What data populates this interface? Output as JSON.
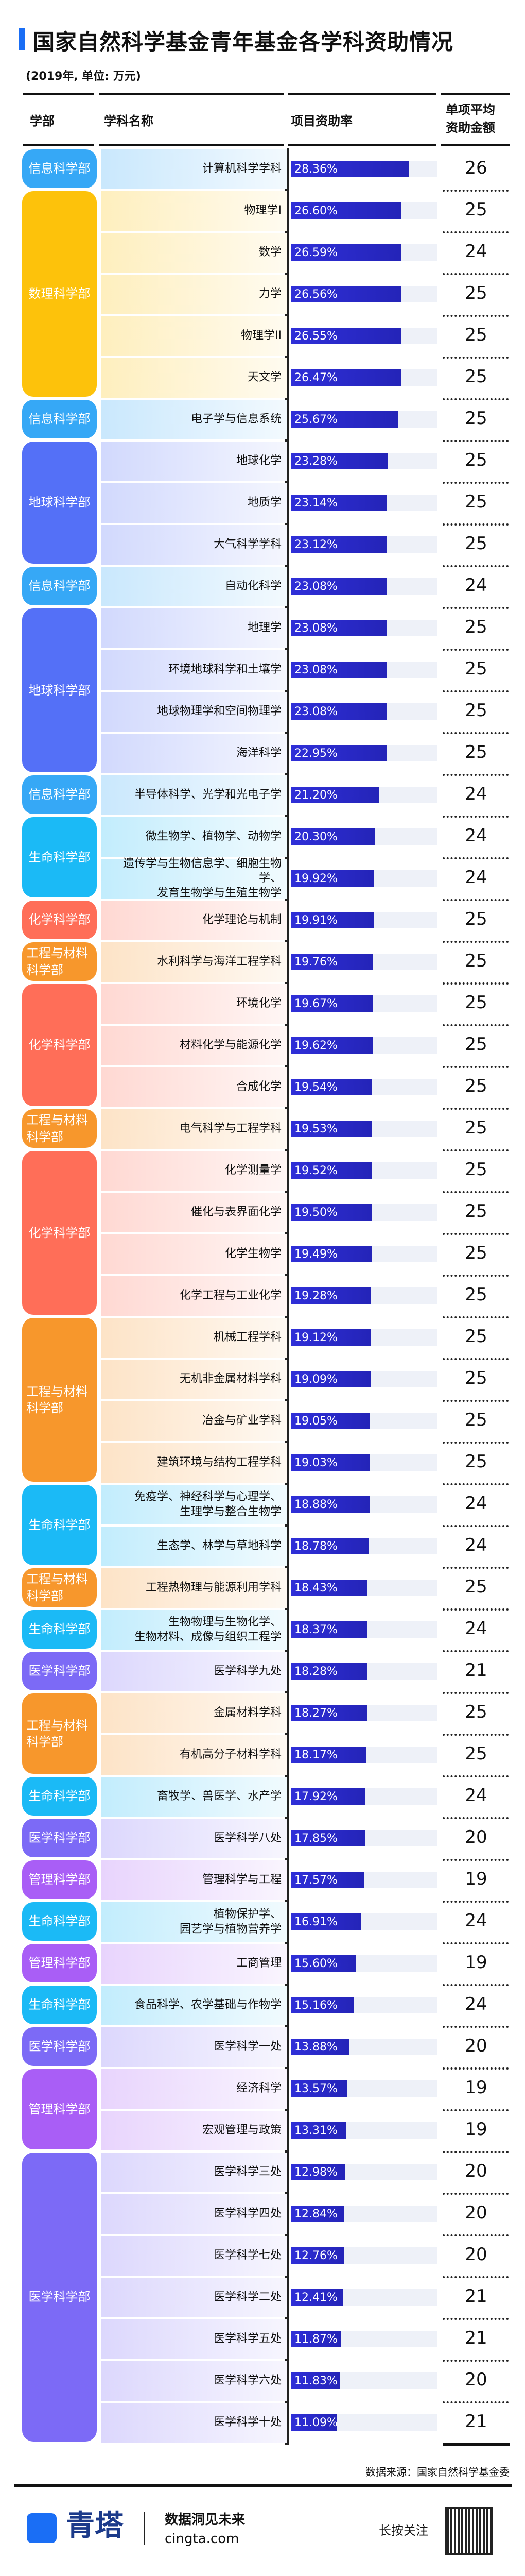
{
  "header": {
    "title": "国家自然科学基金青年基金各学科资助情况",
    "subtitle": "(2019年, 单位: 万元)",
    "columns": [
      "学部",
      "学科名称",
      "项目资助率",
      "单项平均\n资助金额"
    ]
  },
  "colors": {
    "信息科学部": "#36a8f6",
    "数理科学部": "#fdc20b",
    "地球科学部": "#5470f7",
    "生命科学部": "#1bbaf6",
    "化学科学部": "#ff6e58",
    "工程与材料科学部": "#f7972c",
    "医学科学部": "#7c6af6",
    "管理科学部": "#a95ef6",
    "bar": "#2a2ad0"
  },
  "chart_data": {
    "type": "table",
    "value_label": "项目资助率",
    "amount_label": "单项平均资助金额",
    "groups": [
      {
        "dept": "信息科学部",
        "rows": [
          [
            "计算机科学学科",
            28.36,
            26
          ]
        ]
      },
      {
        "dept": "数理科学部",
        "rows": [
          [
            "物理学I",
            26.6,
            25
          ],
          [
            "数学",
            26.59,
            24
          ],
          [
            "力学",
            26.56,
            25
          ],
          [
            "物理学II",
            26.55,
            25
          ],
          [
            "天文学",
            26.47,
            25
          ]
        ]
      },
      {
        "dept": "信息科学部",
        "rows": [
          [
            "电子学与信息系统",
            25.67,
            25
          ]
        ]
      },
      {
        "dept": "地球科学部",
        "rows": [
          [
            "地球化学",
            23.28,
            25
          ],
          [
            "地质学",
            23.14,
            25
          ],
          [
            "大气科学学科",
            23.12,
            25
          ]
        ]
      },
      {
        "dept": "信息科学部",
        "rows": [
          [
            "自动化科学",
            23.08,
            24
          ]
        ]
      },
      {
        "dept": "地球科学部",
        "rows": [
          [
            "地理学",
            23.08,
            25
          ],
          [
            "环境地球科学和土壤学",
            23.08,
            25
          ],
          [
            "地球物理学和空间物理学",
            23.08,
            25
          ],
          [
            "海洋科学",
            22.95,
            25
          ]
        ]
      },
      {
        "dept": "信息科学部",
        "rows": [
          [
            "半导体科学、光学和光电子学",
            21.2,
            24
          ]
        ]
      },
      {
        "dept": "生命科学部",
        "rows": [
          [
            "微生物学、植物学、动物学",
            20.3,
            24
          ],
          [
            "遗传学与生物信息学、细胞生物学、\n发育生物学与生殖生物学",
            19.92,
            24
          ]
        ]
      },
      {
        "dept": "化学科学部",
        "rows": [
          [
            "化学理论与机制",
            19.91,
            25
          ]
        ]
      },
      {
        "dept": "工程与材料科学部",
        "rows": [
          [
            "水利科学与海洋工程学科",
            19.76,
            25
          ]
        ]
      },
      {
        "dept": "化学科学部",
        "rows": [
          [
            "环境化学",
            19.67,
            25
          ],
          [
            "材料化学与能源化学",
            19.62,
            25
          ],
          [
            "合成化学",
            19.54,
            25
          ]
        ]
      },
      {
        "dept": "工程与材料科学部",
        "rows": [
          [
            "电气科学与工程学科",
            19.53,
            25
          ]
        ]
      },
      {
        "dept": "化学科学部",
        "rows": [
          [
            "化学测量学",
            19.52,
            25
          ],
          [
            "催化与表界面化学",
            19.5,
            25
          ],
          [
            "化学生物学",
            19.49,
            25
          ],
          [
            "化学工程与工业化学",
            19.28,
            25
          ]
        ]
      },
      {
        "dept": "工程与材料科学部",
        "rows": [
          [
            "机械工程学科",
            19.12,
            25
          ],
          [
            "无机非金属材料学科",
            19.09,
            25
          ],
          [
            "冶金与矿业学科",
            19.05,
            25
          ],
          [
            "建筑环境与结构工程学科",
            19.03,
            25
          ]
        ]
      },
      {
        "dept": "生命科学部",
        "rows": [
          [
            "免疫学、神经科学与心理学、\n生理学与整合生物学",
            18.88,
            24
          ],
          [
            "生态学、林学与草地科学",
            18.78,
            24
          ]
        ]
      },
      {
        "dept": "工程与材料科学部",
        "rows": [
          [
            "工程热物理与能源利用学科",
            18.43,
            25
          ]
        ]
      },
      {
        "dept": "生命科学部",
        "rows": [
          [
            "生物物理与生物化学、\n生物材料、成像与组织工程学",
            18.37,
            24
          ]
        ]
      },
      {
        "dept": "医学科学部",
        "rows": [
          [
            "医学科学九处",
            18.28,
            21
          ]
        ]
      },
      {
        "dept": "工程与材料科学部",
        "rows": [
          [
            "金属材料学科",
            18.27,
            25
          ],
          [
            "有机高分子材料学科",
            18.17,
            25
          ]
        ]
      },
      {
        "dept": "生命科学部",
        "rows": [
          [
            "畜牧学、兽医学、水产学",
            17.92,
            24
          ]
        ]
      },
      {
        "dept": "医学科学部",
        "rows": [
          [
            "医学科学八处",
            17.85,
            20
          ]
        ]
      },
      {
        "dept": "管理科学部",
        "rows": [
          [
            "管理科学与工程",
            17.57,
            19
          ]
        ]
      },
      {
        "dept": "生命科学部",
        "rows": [
          [
            "植物保护学、\n园艺学与植物营养学",
            16.91,
            24
          ]
        ]
      },
      {
        "dept": "管理科学部",
        "rows": [
          [
            "工商管理",
            15.6,
            19
          ]
        ]
      },
      {
        "dept": "生命科学部",
        "rows": [
          [
            "食品科学、农学基础与作物学",
            15.16,
            24
          ]
        ]
      },
      {
        "dept": "医学科学部",
        "rows": [
          [
            "医学科学一处",
            13.88,
            20
          ]
        ]
      },
      {
        "dept": "管理科学部",
        "rows": [
          [
            "经济科学",
            13.57,
            19
          ],
          [
            "宏观管理与政策",
            13.31,
            19
          ]
        ]
      },
      {
        "dept": "医学科学部",
        "rows": [
          [
            "医学科学三处",
            12.98,
            20
          ],
          [
            "医学科学四处",
            12.84,
            20
          ],
          [
            "医学科学七处",
            12.76,
            20
          ],
          [
            "医学科学二处",
            12.41,
            21
          ],
          [
            "医学科学五处",
            11.87,
            21
          ],
          [
            "医学科学六处",
            11.83,
            20
          ],
          [
            "医学科学十处",
            11.09,
            21
          ]
        ]
      }
    ]
  },
  "footer": {
    "source": "数据来源：国家自然科学基金委",
    "logo_text": "青塔",
    "slogan": "数据洞见未来",
    "site": "cingta.com",
    "follow": "长按关注"
  }
}
